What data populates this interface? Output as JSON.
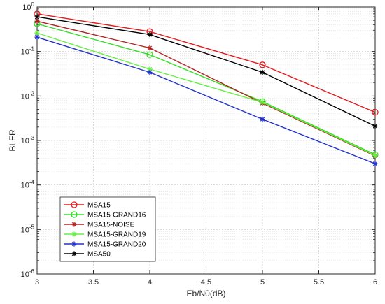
{
  "chart_data": {
    "type": "line",
    "xlabel": "Eb/N0(dB)",
    "ylabel": "BLER",
    "xlim": [
      3,
      6
    ],
    "ylim": [
      1e-06,
      1
    ],
    "yscale": "log",
    "grid": true,
    "minor_grid": true,
    "legend_position": "lower-left",
    "x_ticks": [
      "3",
      "3.5",
      "4",
      "4.5",
      "5",
      "5.5",
      "6"
    ],
    "x_tick_values": [
      3,
      3.5,
      4,
      4.5,
      5,
      5.5,
      6
    ],
    "y_tick_exponents": [
      -6,
      -5,
      -4,
      -3,
      -2,
      -1,
      0
    ],
    "y_tick_base": "10",
    "series": [
      {
        "name": "MSA15",
        "color": "#e41a1c",
        "marker": "circle",
        "x": [
          3,
          4,
          5,
          6
        ],
        "y": [
          0.7,
          0.28,
          0.05,
          0.0043
        ]
      },
      {
        "name": "MSA15-GRAND16",
        "color": "#33dd22",
        "marker": "circle",
        "x": [
          3,
          4,
          5,
          6
        ],
        "y": [
          0.42,
          0.085,
          0.0075,
          0.00048
        ]
      },
      {
        "name": "MSA15-NOISE",
        "color": "#b22222",
        "marker": "star",
        "x": [
          3,
          4,
          5,
          6
        ],
        "y": [
          0.48,
          0.12,
          0.0069,
          0.00045
        ]
      },
      {
        "name": "MSA15-GRAND19",
        "color": "#66ee44",
        "marker": "star",
        "x": [
          3,
          4,
          5,
          6
        ],
        "y": [
          0.26,
          0.04,
          0.0072,
          0.00046
        ]
      },
      {
        "name": "MSA15-GRAND20",
        "color": "#2233cc",
        "marker": "star",
        "x": [
          3,
          4,
          5,
          6
        ],
        "y": [
          0.21,
          0.034,
          0.003,
          0.0003
        ]
      },
      {
        "name": "MSA50",
        "color": "#000000",
        "marker": "star",
        "x": [
          3,
          4,
          5,
          6
        ],
        "y": [
          0.6,
          0.24,
          0.034,
          0.0021
        ]
      }
    ]
  }
}
